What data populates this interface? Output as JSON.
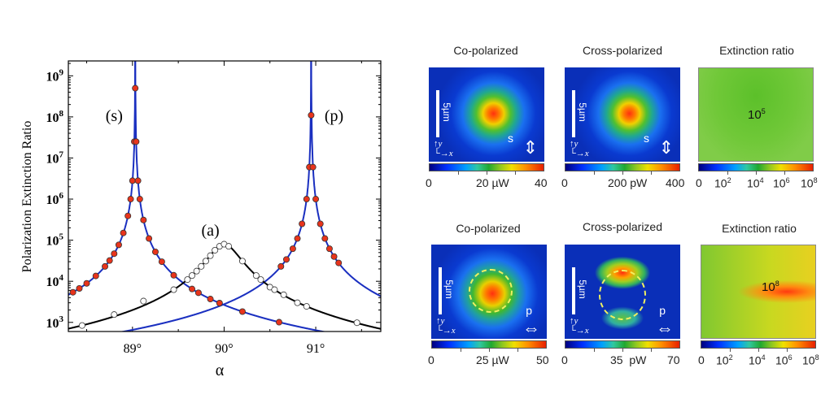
{
  "chart_data": {
    "type": "scatter",
    "xlabel": "α",
    "ylabel": "Polarization Extinction Ratio",
    "yscale": "log",
    "xlim": [
      88.3,
      91.71
    ],
    "ylim": [
      600,
      2300000000
    ],
    "xticks": [
      89,
      90,
      91
    ],
    "xtick_labels": [
      "89°",
      "90°",
      "91°"
    ],
    "yticks": [
      1000,
      10000,
      100000,
      1000000,
      10000000,
      100000000,
      1000000000
    ],
    "ytick_labels": [
      [
        "10",
        "3"
      ],
      [
        "10",
        "4"
      ],
      [
        "10",
        "5"
      ],
      [
        "10",
        "6"
      ],
      [
        "10",
        "7"
      ],
      [
        "10",
        "8"
      ],
      [
        "10",
        "9"
      ]
    ],
    "annotations": [
      {
        "text": "(s)",
        "x": 88.8,
        "y": 80000000
      },
      {
        "text": "(p)",
        "x": 91.2,
        "y": 80000000
      },
      {
        "text": "(a)",
        "x": 89.85,
        "y": 130000
      }
    ],
    "colors": {
      "s": "#e8341c",
      "p": "#e8341c",
      "a": "#ffffff",
      "fit_sp": "#1a2fc0",
      "fit_a": "#000000"
    },
    "series": [
      {
        "label": "(s)",
        "marker": "filled-circle",
        "points": [
          [
            88.35,
            5400
          ],
          [
            88.42,
            6700
          ],
          [
            88.5,
            8900
          ],
          [
            88.6,
            13500
          ],
          [
            88.7,
            23000
          ],
          [
            88.75,
            32000
          ],
          [
            88.8,
            47000
          ],
          [
            88.85,
            77000
          ],
          [
            88.9,
            150000
          ],
          [
            88.95,
            390000
          ],
          [
            88.98,
            1000000
          ],
          [
            89.0,
            2800000
          ],
          [
            89.02,
            25000000
          ],
          [
            89.03,
            500000000
          ],
          [
            89.04,
            25000000
          ],
          [
            89.06,
            2800000
          ],
          [
            89.08,
            1000000
          ],
          [
            89.12,
            310000
          ],
          [
            89.18,
            110000
          ],
          [
            89.25,
            52000
          ],
          [
            89.32,
            30000
          ],
          [
            89.45,
            14000
          ],
          [
            89.65,
            6500
          ],
          [
            89.72,
            5250
          ],
          [
            89.85,
            3700
          ],
          [
            89.95,
            2950
          ],
          [
            90.2,
            1830
          ],
          [
            90.6,
            1010
          ]
        ]
      },
      {
        "label": "(p)",
        "marker": "filled-circle",
        "points": [
          [
            90.62,
            23000
          ],
          [
            90.68,
            34000
          ],
          [
            90.75,
            62000
          ],
          [
            90.8,
            110000
          ],
          [
            90.85,
            250000
          ],
          [
            90.9,
            1000000
          ],
          [
            90.93,
            6000000
          ],
          [
            90.95,
            110000000
          ],
          [
            90.97,
            6000000
          ],
          [
            91.0,
            1000000
          ],
          [
            91.05,
            250000
          ],
          [
            91.1,
            110000
          ],
          [
            91.15,
            62000
          ],
          [
            91.2,
            40000
          ],
          [
            91.25,
            28000
          ]
        ]
      },
      {
        "label": "(a)",
        "marker": "open-circle",
        "points": [
          [
            88.45,
            840
          ],
          [
            88.8,
            1550
          ],
          [
            89.12,
            3300
          ],
          [
            89.45,
            6250
          ],
          [
            89.6,
            11000
          ],
          [
            89.65,
            13800
          ],
          [
            89.7,
            17700
          ],
          [
            89.75,
            23100
          ],
          [
            89.8,
            31000
          ],
          [
            89.85,
            42000
          ],
          [
            89.9,
            57000
          ],
          [
            89.95,
            71000
          ],
          [
            90.0,
            80000
          ],
          [
            90.05,
            71000
          ],
          [
            90.2,
            31000
          ],
          [
            90.35,
            13800
          ],
          [
            90.4,
            11000
          ],
          [
            90.5,
            7200
          ],
          [
            90.55,
            6250
          ],
          [
            90.65,
            4700
          ],
          [
            90.8,
            3000
          ],
          [
            90.9,
            2450
          ],
          [
            91.45,
            980
          ]
        ]
      }
    ]
  },
  "maps": {
    "top": [
      {
        "title": "Co-polarized",
        "labels": [
          "0",
          "20 µW",
          "40"
        ],
        "scale": "5µm",
        "pol": "s",
        "axis_y": "y",
        "axis_x": "x"
      },
      {
        "title": "Cross-polarized",
        "labels": [
          "0",
          "200 pW",
          "400"
        ],
        "scale": "5µm",
        "pol": "s",
        "axis_y": "y",
        "axis_x": "x"
      },
      {
        "title": "Extinction ratio",
        "labels": [
          "0",
          "10",
          "10",
          "10",
          "10"
        ],
        "exps": [
          "2",
          "4",
          "6",
          "8"
        ],
        "value_base": "10",
        "value_exp": "5"
      }
    ],
    "bottom": [
      {
        "title": "Co-polarized",
        "labels": [
          "0",
          "25 µW",
          "50"
        ],
        "scale": "5µm",
        "pol": "p",
        "axis_y": "y",
        "axis_x": "x"
      },
      {
        "title": "Cross-polarized",
        "labels": [
          "0",
          "35  pW",
          "70"
        ],
        "scale": "5µm",
        "pol": "p",
        "axis_y": "y",
        "axis_x": "x"
      },
      {
        "title": "Extinction ratio",
        "labels": [
          "0",
          "10",
          "10",
          "10",
          "10"
        ],
        "exps": [
          "2",
          "4",
          "6",
          "8"
        ],
        "value_base": "10",
        "value_exp": "8"
      }
    ]
  }
}
